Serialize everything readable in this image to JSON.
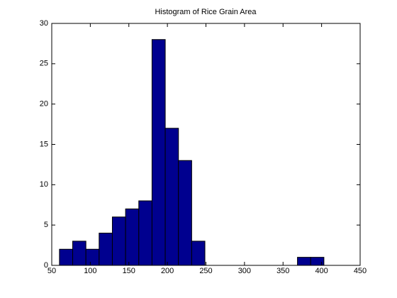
{
  "chart_data": {
    "type": "histogram",
    "title": "Histogram of Rice Grain Area",
    "bins": [
      60,
      77.15,
      94.3,
      111.45,
      128.6,
      145.75,
      162.9,
      180.05,
      197.2,
      214.35,
      231.5,
      248.65,
      265.8,
      282.95,
      300.1,
      317.25,
      334.4,
      351.55,
      368.7,
      385.85,
      403
    ],
    "counts": [
      2,
      3,
      2,
      4,
      6,
      7,
      8,
      28,
      17,
      13,
      3,
      0,
      0,
      0,
      0,
      0,
      0,
      0,
      1,
      1
    ],
    "color": "#00008f",
    "xlim": [
      50,
      450
    ],
    "xticks": [
      50,
      100,
      150,
      200,
      250,
      300,
      350,
      400,
      450
    ],
    "ylim": [
      0,
      30
    ],
    "yticks": [
      0,
      5,
      10,
      15,
      20,
      25,
      30
    ]
  }
}
